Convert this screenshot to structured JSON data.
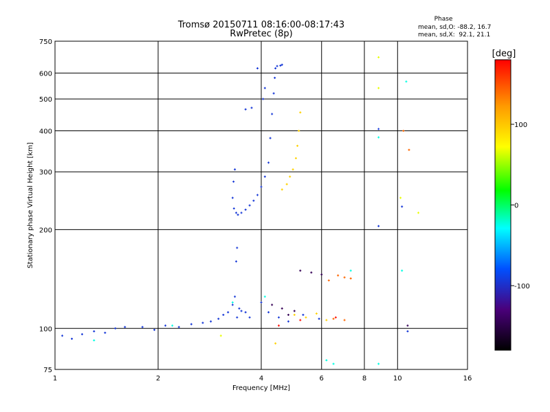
{
  "chart_data": {
    "type": "scatter",
    "title": "Tromsø 20150711 08:16:00-08:17:43",
    "subtitle": "RwPretec (8p)",
    "xlabel": "Frequency [MHz]",
    "ylabel": "Stationary phase Virtual Height [km]",
    "x_scale": "log",
    "y_scale": "log",
    "xlim": [
      1,
      16
    ],
    "ylim": [
      75,
      750
    ],
    "x_ticks": [
      1,
      2,
      4,
      6,
      8,
      10,
      16
    ],
    "x_tick_labels": [
      "1",
      "2",
      "4",
      "6",
      "8",
      "10",
      "16"
    ],
    "y_ticks": [
      75,
      100,
      200,
      300,
      400,
      500,
      600,
      750
    ],
    "y_tick_labels": [
      "75",
      "100",
      "200",
      "300",
      "400",
      "500",
      "600",
      "750"
    ],
    "grid": true,
    "stats": {
      "header": "Phase",
      "line_o": "mean, sd,O: -88.2, 16.7",
      "line_x": "mean, sd,X:  92.1, 21.1"
    },
    "colorbar": {
      "label": "[deg]",
      "range": [
        -180,
        180
      ],
      "ticks": [
        100,
        0,
        -100
      ],
      "tick_labels": [
        "100",
        "0",
        "-100"
      ]
    },
    "series": [
      {
        "phase": -95,
        "points": [
          [
            1.05,
            95
          ],
          [
            1.12,
            93
          ],
          [
            1.2,
            96
          ],
          [
            1.3,
            98
          ],
          [
            1.4,
            97
          ],
          [
            1.5,
            100
          ],
          [
            1.6,
            101
          ],
          [
            1.8,
            101
          ],
          [
            1.95,
            99
          ],
          [
            2.1,
            102
          ],
          [
            2.3,
            101
          ],
          [
            2.5,
            103
          ],
          [
            2.7,
            104
          ],
          [
            2.85,
            105
          ],
          [
            3.0,
            107
          ],
          [
            3.1,
            110
          ],
          [
            3.2,
            112
          ],
          [
            3.3,
            118
          ],
          [
            3.35,
            125
          ],
          [
            3.38,
            160
          ],
          [
            3.4,
            176
          ],
          [
            3.45,
            115
          ],
          [
            3.5,
            113
          ],
          [
            3.6,
            112
          ],
          [
            3.7,
            108
          ],
          [
            3.4,
            108
          ],
          [
            3.35,
            305
          ],
          [
            3.32,
            280
          ],
          [
            3.3,
            250
          ],
          [
            3.33,
            232
          ],
          [
            3.38,
            225
          ],
          [
            3.42,
            222
          ],
          [
            3.5,
            225
          ],
          [
            3.6,
            230
          ],
          [
            3.7,
            237
          ],
          [
            3.8,
            245
          ],
          [
            3.9,
            255
          ],
          [
            4.0,
            270
          ],
          [
            4.1,
            290
          ],
          [
            4.2,
            320
          ],
          [
            4.25,
            380
          ],
          [
            4.3,
            450
          ],
          [
            4.35,
            520
          ],
          [
            4.38,
            580
          ],
          [
            4.4,
            620
          ],
          [
            4.45,
            630
          ],
          [
            4.55,
            632
          ],
          [
            4.6,
            636
          ],
          [
            4.0,
            120
          ],
          [
            4.2,
            112
          ],
          [
            4.5,
            108
          ],
          [
            4.8,
            105
          ],
          [
            5.3,
            110
          ],
          [
            5.9,
            107
          ],
          [
            3.6,
            465
          ],
          [
            3.75,
            470
          ],
          [
            4.05,
            500
          ],
          [
            4.1,
            540
          ],
          [
            3.9,
            620
          ],
          [
            8.8,
            405
          ],
          [
            8.8,
            205
          ],
          [
            10.3,
            235
          ],
          [
            10.7,
            98
          ]
        ]
      },
      {
        "phase": -145,
        "points": [
          [
            4.3,
            118
          ],
          [
            4.6,
            115
          ],
          [
            5.0,
            113
          ],
          [
            5.2,
            150
          ],
          [
            5.6,
            148
          ],
          [
            6.0,
            146
          ],
          [
            4.8,
            110
          ],
          [
            10.7,
            102
          ]
        ]
      },
      {
        "phase": 95,
        "points": [
          [
            4.6,
            265
          ],
          [
            4.75,
            275
          ],
          [
            4.85,
            290
          ],
          [
            4.95,
            305
          ],
          [
            5.05,
            330
          ],
          [
            5.1,
            360
          ],
          [
            5.15,
            400
          ],
          [
            5.2,
            455
          ],
          [
            5.0,
            110
          ],
          [
            5.4,
            108
          ],
          [
            5.8,
            111
          ],
          [
            6.2,
            106
          ],
          [
            4.4,
            90
          ]
        ]
      },
      {
        "phase": 140,
        "points": [
          [
            6.3,
            140
          ],
          [
            6.7,
            145
          ],
          [
            7.0,
            143
          ],
          [
            7.3,
            142
          ],
          [
            6.5,
            107
          ],
          [
            7.0,
            106
          ],
          [
            10.4,
            400
          ],
          [
            10.8,
            350
          ]
        ]
      },
      {
        "phase": 175,
        "points": [
          [
            5.2,
            106
          ],
          [
            6.6,
            108
          ],
          [
            4.5,
            102
          ]
        ]
      },
      {
        "phase": -20,
        "points": [
          [
            1.3,
            92
          ],
          [
            2.2,
            102
          ],
          [
            3.3,
            120
          ],
          [
            4.1,
            125
          ],
          [
            6.2,
            80
          ],
          [
            6.5,
            78
          ],
          [
            8.8,
            78
          ],
          [
            10.3,
            150
          ],
          [
            10.6,
            565
          ],
          [
            8.8,
            382
          ],
          [
            7.3,
            150
          ]
        ]
      },
      {
        "phase": 70,
        "points": [
          [
            8.8,
            670
          ],
          [
            10.2,
            250
          ],
          [
            8.8,
            540
          ],
          [
            11.5,
            225
          ],
          [
            3.05,
            95
          ]
        ]
      }
    ]
  }
}
